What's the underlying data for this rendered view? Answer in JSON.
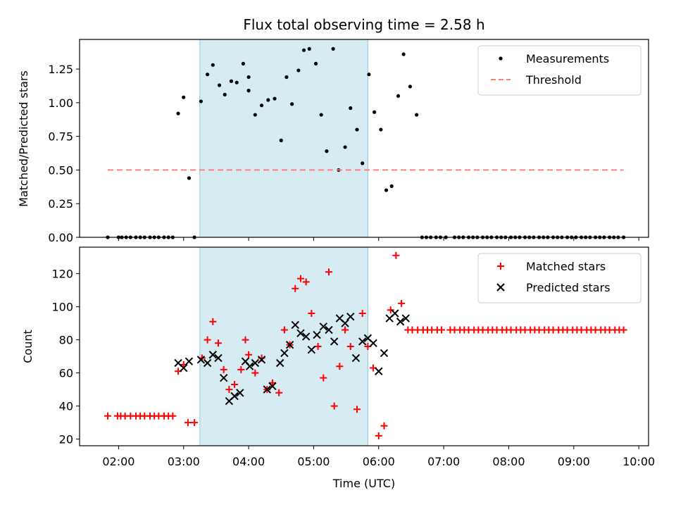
{
  "chart_data": {
    "type": "scatter",
    "title": "Flux total observing time = 2.58 h",
    "xlabel": "Time (UTC)",
    "x_unit": "hours UTC",
    "xlim": [
      "01:24",
      "10:09"
    ],
    "x_ticks": [
      "02:00",
      "03:00",
      "04:00",
      "05:00",
      "06:00",
      "07:00",
      "08:00",
      "09:00",
      "10:00"
    ],
    "observing_window": {
      "start": "03:15",
      "end": "05:50",
      "color": "#add8e6"
    },
    "top": {
      "ylabel": "Matched/Predicted stars",
      "ylim": [
        0,
        1.47
      ],
      "y_ticks": [
        "0.00",
        "0.25",
        "0.50",
        "0.75",
        "1.00",
        "1.25"
      ],
      "legend_position": "top-right",
      "series": [
        {
          "name": "Measurements",
          "marker": "dot",
          "color": "#000000",
          "points": [
            [
              "01:50",
              0
            ],
            [
              "02:00",
              0
            ],
            [
              "02:03",
              0
            ],
            [
              "02:07",
              0
            ],
            [
              "02:11",
              0
            ],
            [
              "02:16",
              0
            ],
            [
              "02:20",
              0
            ],
            [
              "02:24",
              0
            ],
            [
              "02:29",
              0
            ],
            [
              "02:33",
              0
            ],
            [
              "02:37",
              0
            ],
            [
              "02:42",
              0
            ],
            [
              "02:46",
              0
            ],
            [
              "02:50",
              0
            ],
            [
              "02:55",
              0.92
            ],
            [
              "03:00",
              1.04
            ],
            [
              "03:05",
              0.44
            ],
            [
              "03:10",
              0
            ],
            [
              "03:16",
              1.01
            ],
            [
              "03:22",
              1.21
            ],
            [
              "03:27",
              1.28
            ],
            [
              "03:33",
              1.13
            ],
            [
              "03:38",
              1.06
            ],
            [
              "03:44",
              1.16
            ],
            [
              "03:49",
              1.15
            ],
            [
              "03:55",
              1.29
            ],
            [
              "04:00",
              1.19
            ],
            [
              "04:00",
              1.09
            ],
            [
              "04:06",
              0.91
            ],
            [
              "04:12",
              0.98
            ],
            [
              "04:18",
              1.02
            ],
            [
              "04:24",
              1.03
            ],
            [
              "04:30",
              0.72
            ],
            [
              "04:35",
              1.19
            ],
            [
              "04:40",
              0.99
            ],
            [
              "04:46",
              1.24
            ],
            [
              "04:51",
              1.39
            ],
            [
              "04:56",
              1.4
            ],
            [
              "05:02",
              1.29
            ],
            [
              "05:07",
              0.91
            ],
            [
              "05:12",
              0.64
            ],
            [
              "05:18",
              1.4
            ],
            [
              "05:23",
              0.5
            ],
            [
              "05:29",
              0.67
            ],
            [
              "05:34",
              0.96
            ],
            [
              "05:40",
              0.8
            ],
            [
              "05:45",
              0.55
            ],
            [
              "05:51",
              1.21
            ],
            [
              "05:56",
              0.93
            ],
            [
              "06:02",
              0.8
            ],
            [
              "06:07",
              0.35
            ],
            [
              "06:12",
              0.38
            ],
            [
              "06:18",
              1.05
            ],
            [
              "06:23",
              1.36
            ],
            [
              "06:29",
              1.12
            ],
            [
              "06:35",
              0.91
            ],
            [
              "06:40",
              0
            ],
            [
              "06:44",
              0
            ],
            [
              "06:48",
              0
            ],
            [
              "06:53",
              0
            ],
            [
              "06:57",
              0
            ],
            [
              "07:02",
              0
            ],
            [
              "07:10",
              0
            ],
            [
              "07:14",
              0
            ],
            [
              "07:18",
              0
            ],
            [
              "07:23",
              0
            ],
            [
              "07:27",
              0
            ],
            [
              "07:31",
              0
            ],
            [
              "07:36",
              0
            ],
            [
              "07:40",
              0
            ],
            [
              "07:44",
              0
            ],
            [
              "07:49",
              0
            ],
            [
              "07:53",
              0
            ],
            [
              "07:57",
              0
            ],
            [
              "08:02",
              0
            ],
            [
              "08:06",
              0
            ],
            [
              "08:10",
              0
            ],
            [
              "08:15",
              0
            ],
            [
              "08:19",
              0
            ],
            [
              "08:23",
              0
            ],
            [
              "08:28",
              0
            ],
            [
              "08:32",
              0
            ],
            [
              "08:36",
              0
            ],
            [
              "08:41",
              0
            ],
            [
              "08:45",
              0
            ],
            [
              "08:49",
              0
            ],
            [
              "08:54",
              0
            ],
            [
              "08:58",
              0
            ],
            [
              "09:02",
              0
            ],
            [
              "09:07",
              0
            ],
            [
              "09:11",
              0
            ],
            [
              "09:15",
              0
            ],
            [
              "09:20",
              0
            ],
            [
              "09:24",
              0
            ],
            [
              "09:28",
              0
            ],
            [
              "09:33",
              0
            ],
            [
              "09:37",
              0
            ],
            [
              "09:41",
              0
            ],
            [
              "09:46",
              0
            ]
          ]
        },
        {
          "name": "Threshold",
          "marker": "dashed-line",
          "color": "#ff7f7f",
          "points": [
            [
              "01:50",
              0.5
            ],
            [
              "09:46",
              0.5
            ]
          ]
        }
      ]
    },
    "bottom": {
      "ylabel": "Count",
      "ylim": [
        16,
        136
      ],
      "y_ticks": [
        "20",
        "40",
        "60",
        "80",
        "100",
        "120"
      ],
      "legend_position": "top-right",
      "series": [
        {
          "name": "Matched stars",
          "marker": "plus",
          "color": "#ff0000",
          "points": [
            [
              "01:50",
              34
            ],
            [
              "01:59",
              34
            ],
            [
              "02:02",
              34
            ],
            [
              "02:06",
              34
            ],
            [
              "02:11",
              34
            ],
            [
              "02:16",
              34
            ],
            [
              "02:20",
              34
            ],
            [
              "02:24",
              34
            ],
            [
              "02:29",
              34
            ],
            [
              "02:33",
              34
            ],
            [
              "02:37",
              34
            ],
            [
              "02:42",
              34
            ],
            [
              "02:46",
              34
            ],
            [
              "02:50",
              34
            ],
            [
              "02:55",
              61
            ],
            [
              "03:00",
              65
            ],
            [
              "03:04",
              30
            ],
            [
              "03:10",
              30
            ],
            [
              "03:17",
              69
            ],
            [
              "03:22",
              80
            ],
            [
              "03:27",
              91
            ],
            [
              "03:32",
              78
            ],
            [
              "03:37",
              62
            ],
            [
              "03:42",
              50
            ],
            [
              "03:47",
              53
            ],
            [
              "03:53",
              62
            ],
            [
              "03:57",
              80
            ],
            [
              "04:00",
              71
            ],
            [
              "04:06",
              60
            ],
            [
              "04:12",
              69
            ],
            [
              "04:17",
              50
            ],
            [
              "04:22",
              54
            ],
            [
              "04:28",
              48
            ],
            [
              "04:33",
              86
            ],
            [
              "04:38",
              77
            ],
            [
              "04:43",
              111
            ],
            [
              "04:48",
              117
            ],
            [
              "04:53",
              115
            ],
            [
              "04:58",
              96
            ],
            [
              "05:04",
              76
            ],
            [
              "05:09",
              57
            ],
            [
              "05:14",
              121
            ],
            [
              "05:19",
              40
            ],
            [
              "05:24",
              64
            ],
            [
              "05:29",
              86
            ],
            [
              "05:34",
              76
            ],
            [
              "05:40",
              38
            ],
            [
              "05:45",
              96
            ],
            [
              "05:50",
              76
            ],
            [
              "05:55",
              63
            ],
            [
              "06:00",
              22
            ],
            [
              "06:05",
              28
            ],
            [
              "06:11",
              98
            ],
            [
              "06:16",
              131
            ],
            [
              "06:21",
              102
            ],
            [
              "06:27",
              86
            ],
            [
              "06:31",
              86
            ],
            [
              "06:36",
              86
            ],
            [
              "06:41",
              86
            ],
            [
              "06:45",
              86
            ],
            [
              "06:49",
              86
            ],
            [
              "06:54",
              86
            ],
            [
              "06:58",
              86
            ],
            [
              "07:06",
              86
            ],
            [
              "07:10",
              86
            ],
            [
              "07:15",
              86
            ],
            [
              "07:19",
              86
            ],
            [
              "07:23",
              86
            ],
            [
              "07:28",
              86
            ],
            [
              "07:32",
              86
            ],
            [
              "07:36",
              86
            ],
            [
              "07:41",
              86
            ],
            [
              "07:45",
              86
            ],
            [
              "07:49",
              86
            ],
            [
              "07:54",
              86
            ],
            [
              "07:58",
              86
            ],
            [
              "08:02",
              86
            ],
            [
              "08:07",
              86
            ],
            [
              "08:11",
              86
            ],
            [
              "08:15",
              86
            ],
            [
              "08:20",
              86
            ],
            [
              "08:24",
              86
            ],
            [
              "08:28",
              86
            ],
            [
              "08:33",
              86
            ],
            [
              "08:37",
              86
            ],
            [
              "08:41",
              86
            ],
            [
              "08:46",
              86
            ],
            [
              "08:50",
              86
            ],
            [
              "08:54",
              86
            ],
            [
              "08:59",
              86
            ],
            [
              "09:03",
              86
            ],
            [
              "09:07",
              86
            ],
            [
              "09:12",
              86
            ],
            [
              "09:16",
              86
            ],
            [
              "09:20",
              86
            ],
            [
              "09:25",
              86
            ],
            [
              "09:29",
              86
            ],
            [
              "09:33",
              86
            ],
            [
              "09:38",
              86
            ],
            [
              "09:42",
              86
            ],
            [
              "09:46",
              86
            ]
          ]
        },
        {
          "name": "Predicted stars",
          "marker": "x",
          "color": "#000000",
          "points": [
            [
              "02:55",
              66
            ],
            [
              "03:00",
              63
            ],
            [
              "03:05",
              67
            ],
            [
              "03:16",
              68
            ],
            [
              "03:22",
              66
            ],
            [
              "03:27",
              71
            ],
            [
              "03:32",
              69
            ],
            [
              "03:37",
              57
            ],
            [
              "03:42",
              43
            ],
            [
              "03:47",
              46
            ],
            [
              "03:52",
              48
            ],
            [
              "03:57",
              67
            ],
            [
              "04:01",
              64
            ],
            [
              "04:06",
              66
            ],
            [
              "04:12",
              68
            ],
            [
              "04:17",
              50
            ],
            [
              "04:22",
              52
            ],
            [
              "04:29",
              66
            ],
            [
              "04:33",
              72
            ],
            [
              "04:38",
              77
            ],
            [
              "04:43",
              89
            ],
            [
              "04:48",
              84
            ],
            [
              "04:53",
              82
            ],
            [
              "04:58",
              74
            ],
            [
              "05:03",
              83
            ],
            [
              "05:09",
              88
            ],
            [
              "05:14",
              86
            ],
            [
              "05:19",
              79
            ],
            [
              "05:24",
              93
            ],
            [
              "05:29",
              90
            ],
            [
              "05:34",
              94
            ],
            [
              "05:39",
              69
            ],
            [
              "05:45",
              79
            ],
            [
              "05:50",
              81
            ],
            [
              "05:55",
              78
            ],
            [
              "06:00",
              61
            ],
            [
              "06:05",
              72
            ],
            [
              "06:10",
              93
            ],
            [
              "06:15",
              96
            ],
            [
              "06:20",
              91
            ],
            [
              "06:25",
              93
            ]
          ]
        }
      ]
    }
  }
}
